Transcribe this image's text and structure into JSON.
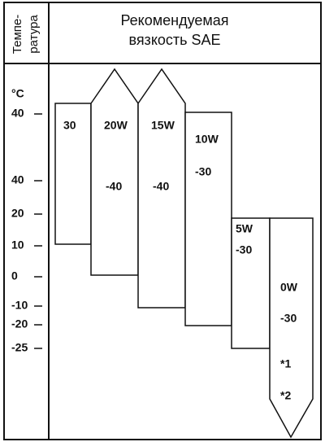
{
  "header": {
    "temperature_label": [
      "Темпе-",
      "ратура"
    ],
    "title": [
      "Рекомендуемая",
      "вязкость SAE"
    ]
  },
  "axis": {
    "unit": "°C",
    "labels": [
      "40",
      "40",
      "20",
      "10",
      "0",
      "-10",
      "-20",
      "-25"
    ]
  },
  "grades": [
    {
      "name": "30"
    },
    {
      "name": "20W",
      "min_temp": "-40"
    },
    {
      "name": "15W",
      "min_temp": "-40"
    },
    {
      "name": "10W",
      "min_temp": "-30"
    },
    {
      "name": "5W",
      "min_temp": "-30"
    },
    {
      "name": "0W",
      "min_temp": "-30",
      "notes": [
        "*1",
        "*2"
      ]
    }
  ]
}
